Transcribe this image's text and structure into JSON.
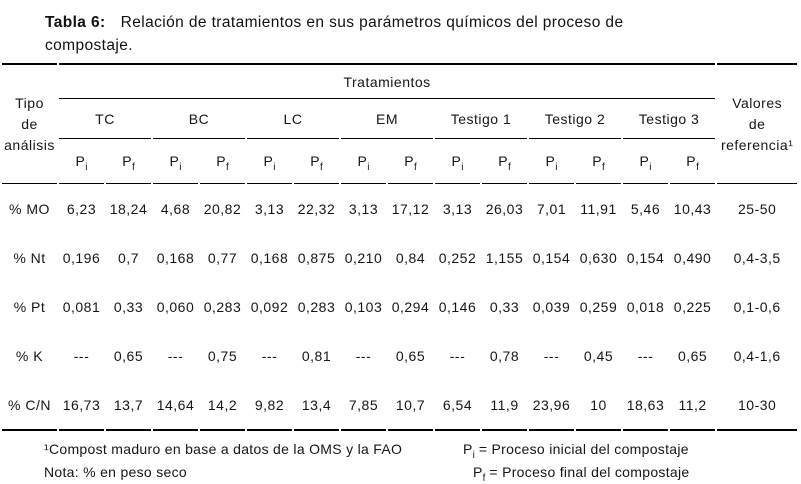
{
  "title": {
    "label": "Tabla 6:",
    "line1": "Relación de tratamientos en sus parámetros químicos del proceso de",
    "line2": "compostaje."
  },
  "table": {
    "corner": {
      "line1": "Tipo",
      "line2": "de",
      "line3": "análisis"
    },
    "treatments_header": "Tratamientos",
    "reference": {
      "line1": "Valores",
      "line2": "de",
      "line3": "referencia¹"
    },
    "groups": [
      "TC",
      "BC",
      "LC",
      "EM",
      "Testigo 1",
      "Testigo 2",
      "Testigo 3"
    ],
    "p_label": "P",
    "pi_sub": "i",
    "pf_sub": "f",
    "rows": [
      {
        "label": "% MO",
        "values": [
          "6,23",
          "18,24",
          "4,68",
          "20,82",
          "3,13",
          "22,32",
          "3,13",
          "17,12",
          "3,13",
          "26,03",
          "7,01",
          "11,91",
          "5,46",
          "10,43"
        ],
        "reference": "25-50"
      },
      {
        "label": "% Nt",
        "values": [
          "0,196",
          "0,7",
          "0,168",
          "0,77",
          "0,168",
          "0,875",
          "0,210",
          "0,84",
          "0,252",
          "1,155",
          "0,154",
          "0,630",
          "0,154",
          "0,490"
        ],
        "reference": "0,4-3,5"
      },
      {
        "label": "% Pt",
        "values": [
          "0,081",
          "0,33",
          "0,060",
          "0,283",
          "0,092",
          "0,283",
          "0,103",
          "0,294",
          "0,146",
          "0,33",
          "0,039",
          "0,259",
          "0,018",
          "0,225"
        ],
        "reference": "0,1-0,6"
      },
      {
        "label": "% K",
        "values": [
          "---",
          "0,65",
          "---",
          "0,75",
          "---",
          "0,81",
          "---",
          "0,65",
          "---",
          "0,78",
          "---",
          "0,45",
          "---",
          "0,65"
        ],
        "reference": "0,4-1,6"
      },
      {
        "label": "% C/N",
        "values": [
          "16,73",
          "13,7",
          "14,64",
          "14,2",
          "9,82",
          "13,4",
          "7,85",
          "10,7",
          "6,54",
          "11,9",
          "23,96",
          "10",
          "18,63",
          "11,2"
        ],
        "reference": "10-30"
      }
    ]
  },
  "footer": {
    "note1": "¹Compost maduro en base a datos de la OMS y la FAO",
    "note2": "Nota: % en peso seco",
    "p_label": "P",
    "pi_sub": "i",
    "pf_sub": "f",
    "pi_text": "= Proceso inicial del compostaje",
    "pf_text": "= Proceso final del compostaje"
  }
}
